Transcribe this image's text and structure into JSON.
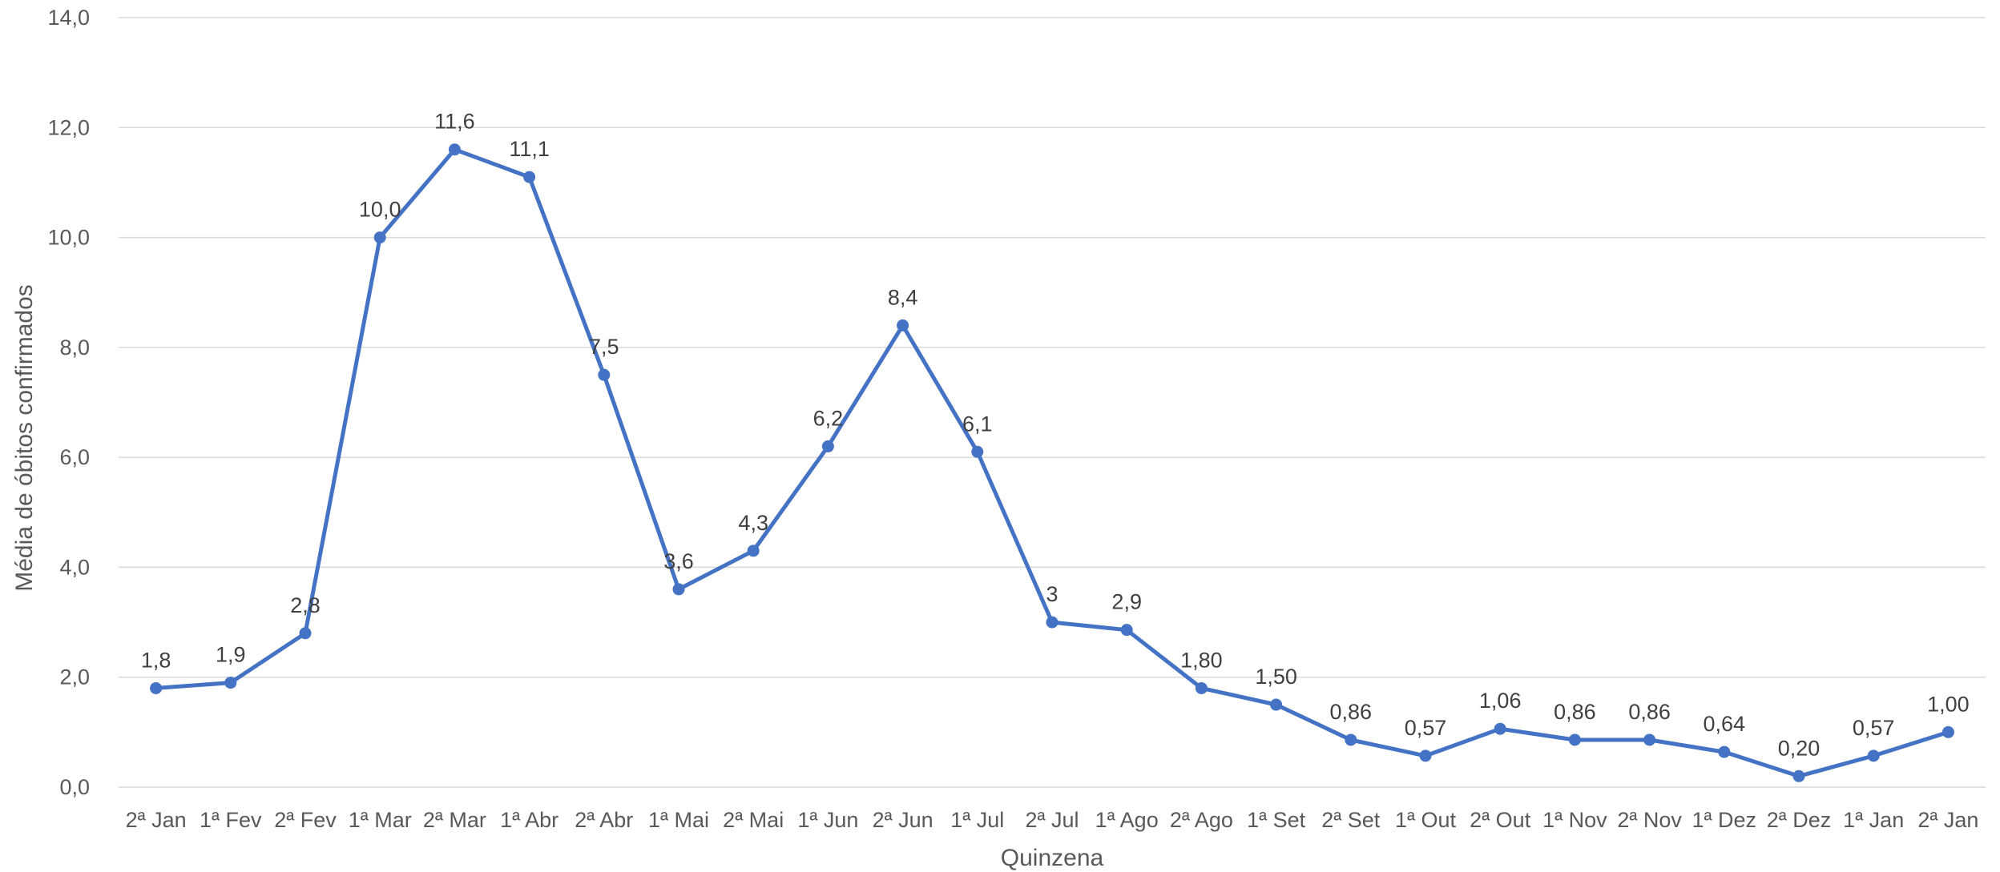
{
  "chart_data": {
    "type": "line",
    "title": "",
    "xlabel": "Quinzena",
    "ylabel": "Média de óbitos confirmados",
    "categories": [
      "2ª Jan",
      "1ª Fev",
      "2ª Fev",
      "1ª Mar",
      "2ª Mar",
      "1ª Abr",
      "2ª Abr",
      "1ª Mai",
      "2ª Mai",
      "1ª Jun",
      "2ª Jun",
      "1ª Jul",
      "2ª Jul",
      "1ª Ago",
      "2ª Ago",
      "1ª Set",
      "2ª Set",
      "1ª Out",
      "2ª Out",
      "1ª Nov",
      "2ª Nov",
      "1ª Dez",
      "2ª Dez",
      "1ª Jan",
      "2ª Jan"
    ],
    "values": [
      1.8,
      1.9,
      2.8,
      10.0,
      11.6,
      11.1,
      7.5,
      3.6,
      4.3,
      6.2,
      8.4,
      6.1,
      3.0,
      2.86,
      1.8,
      1.5,
      0.86,
      0.57,
      1.06,
      0.86,
      0.86,
      0.64,
      0.2,
      0.57,
      1.0
    ],
    "data_labels": [
      "1,8",
      "1,9",
      "2,8",
      "10,0",
      "11,6",
      "11,1",
      "7,5",
      "3,6",
      "4,3",
      "6,2",
      "8,4",
      "6,1",
      "3",
      "2,9",
      "1,80",
      "1,50",
      "0,86",
      "0,57",
      "1,06",
      "0,86",
      "0,86",
      "0,64",
      "0,20",
      "0,57",
      "1,00"
    ],
    "ylim": [
      0,
      14
    ],
    "ytick_values": [
      0,
      2,
      4,
      6,
      8,
      10,
      12,
      14
    ],
    "ytick_labels": [
      "0,0",
      "2,0",
      "4,0",
      "6,0",
      "8,0",
      "10,0",
      "12,0",
      "14,0"
    ],
    "grid": true,
    "legend": "none",
    "line_color": "#4472c4"
  }
}
